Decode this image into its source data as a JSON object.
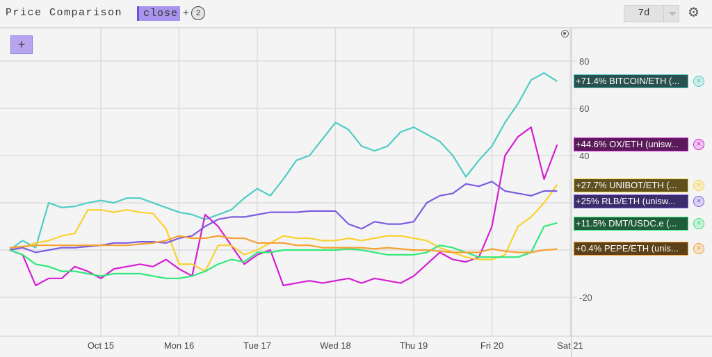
{
  "header": {
    "title": "Price Comparison",
    "metric_chip": "close",
    "plus": "+",
    "extra_count": "2",
    "range_value": "7d",
    "settings_icon": "gear-icon"
  },
  "add_button_label": "+",
  "legend": [
    {
      "label": "+71.4% BITCOIN/ETH (...",
      "color": "#4ecdc4",
      "bg": "#2a4f4f"
    },
    {
      "label": "+44.6% OX/ETH (unisw...",
      "color": "#d41ed4",
      "bg": "#5a1a5a"
    },
    {
      "label": "+27.7% UNIBOT/ETH (...",
      "color": "#f9d230",
      "bg": "#5f5020"
    },
    {
      "label": "+25% RLB/ETH (unisw...",
      "color": "#7b5ce0",
      "bg": "#3a2d6a"
    },
    {
      "label": "+11.5% DMT/USDC.e (...",
      "color": "#2ee87a",
      "bg": "#1f5c3a"
    },
    {
      "label": "+0.4% PEPE/ETH (unis...",
      "color": "#f5a030",
      "bg": "#5c4017"
    }
  ],
  "chart_data": {
    "type": "line",
    "title": "",
    "xlabel": "",
    "ylabel": "",
    "x_tick_labels": [
      "Oct 15",
      "Mon 16",
      "Tue 17",
      "Wed 18",
      "Thu 19",
      "Fri 20",
      "Sat 21"
    ],
    "y_ticks": [
      80,
      60,
      40,
      20,
      0,
      -20
    ],
    "y_tick_labels": [
      "80",
      "60",
      "40",
      "",
      "",
      "-20"
    ],
    "ylim": [
      -36,
      94
    ],
    "grid": true,
    "legend_position": "right",
    "x": [
      "Oct 13 20:00",
      "Oct 14 00:00",
      "Oct 14 04:00",
      "Oct 14 08:00",
      "Oct 14 12:00",
      "Oct 14 16:00",
      "Oct 14 20:00",
      "Oct 15 00:00",
      "Oct 15 04:00",
      "Oct 15 08:00",
      "Oct 15 12:00",
      "Oct 15 16:00",
      "Oct 15 20:00",
      "Oct 16 00:00",
      "Oct 16 04:00",
      "Oct 16 08:00",
      "Oct 16 12:00",
      "Oct 16 16:00",
      "Oct 16 20:00",
      "Oct 17 00:00",
      "Oct 17 04:00",
      "Oct 17 08:00",
      "Oct 17 12:00",
      "Oct 17 16:00",
      "Oct 17 20:00",
      "Oct 18 00:00",
      "Oct 18 04:00",
      "Oct 18 08:00",
      "Oct 18 12:00",
      "Oct 18 16:00",
      "Oct 18 20:00",
      "Oct 19 00:00",
      "Oct 19 04:00",
      "Oct 19 08:00",
      "Oct 19 12:00",
      "Oct 19 16:00",
      "Oct 19 20:00",
      "Oct 20 00:00",
      "Oct 20 04:00",
      "Oct 20 08:00",
      "Oct 20 12:00",
      "Oct 20 16:00",
      "Oct 20 20:00"
    ],
    "series": [
      {
        "name": "BITCOIN/ETH",
        "color": "#4ecdc4",
        "values": [
          0,
          4,
          1,
          20,
          18,
          18.5,
          20,
          21,
          20,
          22,
          22,
          20,
          18,
          16,
          15,
          13,
          15,
          17,
          22,
          26,
          23,
          30,
          38,
          40,
          47,
          54,
          51,
          44,
          42,
          44,
          50,
          52,
          49,
          46,
          40,
          31,
          38,
          44,
          54,
          62,
          72,
          75,
          71.4
        ]
      },
      {
        "name": "OX/ETH",
        "color": "#d41ed4",
        "values": [
          0,
          -2,
          -15,
          -12,
          -12,
          -7,
          -9,
          -12,
          -8,
          -7,
          -6,
          -7,
          -4,
          -8,
          -11,
          15,
          10,
          2,
          -6,
          -2,
          0,
          -15,
          -14,
          -13,
          -14,
          -13,
          -12,
          -14,
          -12,
          -13,
          -14,
          -11,
          -6,
          -1,
          -4,
          -5,
          -3,
          10,
          40,
          48,
          52,
          30,
          44.6
        ]
      },
      {
        "name": "UNIBOT/ETH",
        "color": "#f9d230",
        "values": [
          0,
          1,
          3,
          4,
          6,
          7,
          17,
          17,
          16,
          17,
          16,
          15.5,
          9,
          -6,
          -6,
          -9,
          2,
          2,
          -2,
          0,
          3,
          6,
          5,
          5,
          4,
          4,
          5,
          4,
          5,
          6,
          6,
          5,
          4,
          1,
          -1,
          -3,
          -4,
          -4,
          -2,
          10,
          14,
          20,
          27.7
        ]
      },
      {
        "name": "RLB/ETH",
        "color": "#7b5ce0",
        "values": [
          0,
          1,
          -1,
          0,
          1,
          1,
          1.5,
          2,
          3,
          3,
          3.5,
          3.5,
          3,
          5,
          6,
          10,
          13,
          14,
          14,
          15,
          16,
          16,
          16,
          16.5,
          16.5,
          16.5,
          11,
          9,
          12,
          11,
          11,
          12,
          20,
          23,
          24,
          28,
          27,
          29,
          25,
          24,
          23,
          25,
          25
        ]
      },
      {
        "name": "DMT/USDC.e",
        "color": "#2ee87a",
        "values": [
          0,
          -2,
          -6,
          -7,
          -9,
          -9,
          -10,
          -11,
          -10,
          -10,
          -10,
          -11,
          -12,
          -12,
          -11,
          -9,
          -6,
          -4,
          -5,
          -1,
          -1,
          0,
          0,
          0,
          0,
          0,
          0.5,
          0,
          -1,
          -2,
          -2,
          -2,
          -1,
          2,
          1,
          -1,
          -3,
          -3,
          -3,
          -3,
          -1,
          10,
          11.5
        ]
      },
      {
        "name": "PEPE/ETH",
        "color": "#f5a030",
        "values": [
          1,
          1.5,
          2,
          2,
          2,
          2,
          2,
          2,
          2,
          2,
          2.5,
          3,
          4,
          6,
          5,
          5,
          6,
          5,
          5,
          3,
          3,
          3,
          2,
          2,
          1,
          1,
          1,
          1,
          0.5,
          1,
          0.5,
          0,
          0,
          -0.5,
          -1,
          -1,
          -1,
          0.5,
          -0.5,
          -1,
          -1,
          0,
          0.4
        ]
      }
    ]
  }
}
